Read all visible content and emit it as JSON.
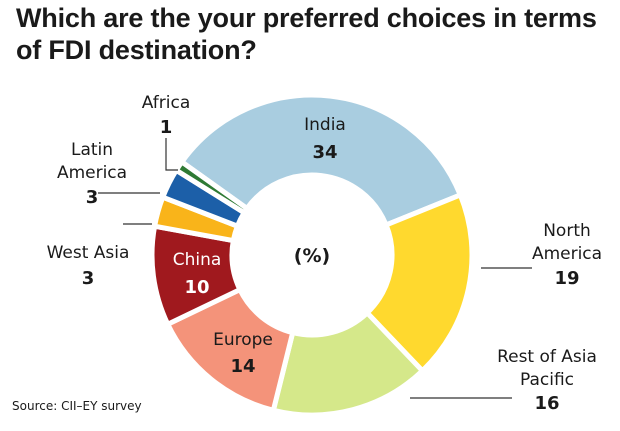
{
  "title_lines": [
    "Which are the your preferred choices in terms",
    "of FDI destination?"
  ],
  "source": "Source: CII–EY survey",
  "center_label": "(%)",
  "chart_data": {
    "type": "pie",
    "donut": true,
    "title": "Which are the your preferred choices in terms of FDI destination?",
    "unit": "%",
    "slices": [
      {
        "name": "India",
        "value": 34,
        "color": "#a9cde0"
      },
      {
        "name": "North America",
        "value": 19,
        "color": "#ffd92e"
      },
      {
        "name": "Rest of Asia Pacific",
        "value": 16,
        "color": "#d5e88a"
      },
      {
        "name": "Europe",
        "value": 14,
        "color": "#f4937a"
      },
      {
        "name": "China",
        "value": 10,
        "color": "#a0191e"
      },
      {
        "name": "West Asia",
        "value": 3,
        "color": "#f9b41a"
      },
      {
        "name": "Latin America",
        "value": 3,
        "color": "#1c5fa8"
      },
      {
        "name": "Africa",
        "value": 1,
        "color": "#2e7a34"
      }
    ]
  }
}
